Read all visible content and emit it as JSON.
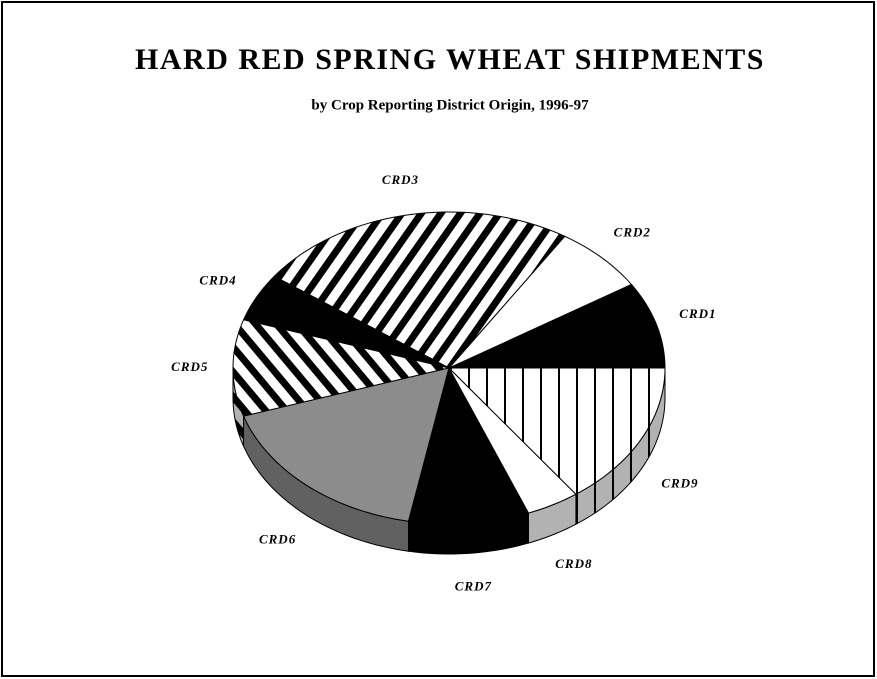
{
  "chart_data": {
    "type": "pie",
    "title": "HARD RED SPRING WHEAT SHIPMENTS",
    "subtitle": "by Crop Reporting District Origin, 1996-97",
    "categories": [
      "CRD1",
      "CRD2",
      "CRD3",
      "CRD4",
      "CRD5",
      "CRD6",
      "CRD7",
      "CRD8",
      "CRD9"
    ],
    "values": [
      9,
      7,
      24,
      5,
      10,
      17,
      9,
      4,
      15
    ],
    "patterns": [
      "black",
      "white",
      "hatch-forward",
      "black",
      "hatch-back",
      "gray",
      "black",
      "white",
      "vertical"
    ]
  }
}
